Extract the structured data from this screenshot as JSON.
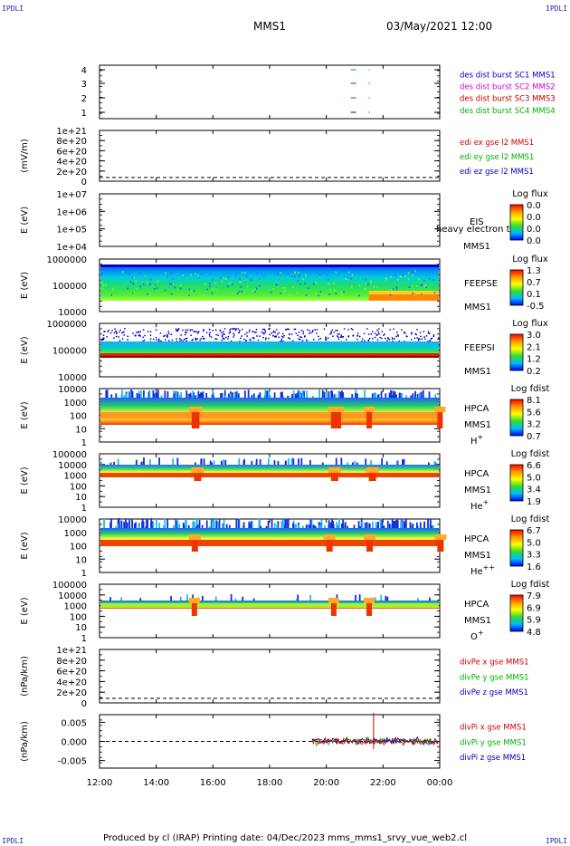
{
  "corners": {
    "tl": "IPDLI",
    "tr": "IPDLI",
    "bl": "IPDLI",
    "br": "IPDLI"
  },
  "header": {
    "spacecraft": "MMS1",
    "datetime": "03/May/2021 12:00"
  },
  "footer": {
    "text": "Produced by cl (IRAP)    Printing date: 04/Dec/2023    mms_mms1_srvy_vue_web2.cl"
  },
  "colors": {
    "frame": "#000000",
    "dash": "#000000",
    "cb_top": "#ff0000",
    "cb_bottom": "#0000ff"
  },
  "chart_data": [
    {
      "type": "scatter",
      "name": "burst",
      "y_ticks": [
        "4",
        "3",
        "2",
        "1"
      ],
      "legend": [
        {
          "text": "des dist burst SC1 MMS1",
          "color": "#0000c0"
        },
        {
          "text": "des dist burst SC2 MMS2",
          "color": "#d000d0"
        },
        {
          "text": "des dist burst SC3 MMS3",
          "color": "#c00000"
        },
        {
          "text": "des dist burst SC4 MMS4",
          "color": "#00b000"
        }
      ],
      "points": [
        {
          "x": "21:30",
          "y": 4,
          "color": "#00b000"
        },
        {
          "x": "21:30",
          "y": 3,
          "color": "#c00000"
        },
        {
          "x": "21:30",
          "y": 2,
          "color": "#d000d0"
        },
        {
          "x": "21:30",
          "y": 1,
          "color": "#0000c0"
        }
      ]
    },
    {
      "type": "line",
      "name": "edi",
      "ylabel": "(mV/m)",
      "y_ticks": [
        "1e+21",
        "8e+20",
        "6e+20",
        "4e+20",
        "2e+20",
        "0"
      ],
      "legend": [
        {
          "text": "edi ex gse l2 MMS1",
          "color": "#d00000"
        },
        {
          "text": "edi ey gse l2 MMS1",
          "color": "#00b000"
        },
        {
          "text": "edi ez gse l2 MMS1",
          "color": "#0000c0"
        }
      ]
    },
    {
      "type": "heatmap",
      "name": "EIS",
      "ylabel": "E (eV)",
      "y_ticks": [
        "1e+07",
        "1e+06",
        "1e+05",
        "1e+04"
      ],
      "labels": [
        "EIS",
        "MMS1"
      ],
      "overlay": "heavy electron to",
      "cb_title": "Log flux",
      "cb_ticks": [
        "0.0",
        "0.0",
        "0.0",
        "0.0"
      ]
    },
    {
      "type": "heatmap",
      "name": "FEEPSE",
      "ylabel": "E (eV)",
      "y_ticks": [
        "1000000",
        "100000",
        "10000"
      ],
      "labels": [
        "FEEPSE",
        "MMS1"
      ],
      "cb_title": "Log flux",
      "cb_ticks": [
        "1.3",
        "0.7",
        "0.1",
        "-0.5"
      ]
    },
    {
      "type": "heatmap",
      "name": "FEEPSI",
      "ylabel": "E (eV)",
      "y_ticks": [
        "1000000",
        "100000",
        "10000"
      ],
      "labels": [
        "FEEPSI",
        "MMS1"
      ],
      "cb_title": "Log flux",
      "cb_ticks": [
        "3.0",
        "2.1",
        "1.2",
        "0.2"
      ]
    },
    {
      "type": "heatmap",
      "name": "HPCA H+",
      "ylabel": "E (eV)",
      "y_ticks": [
        "10000",
        "1000",
        "100",
        "10",
        "1"
      ],
      "labels": [
        "HPCA",
        "MMS1",
        "H+"
      ],
      "cb_title": "Log fdist",
      "cb_ticks": [
        "8.1",
        "5.6",
        "3.2",
        "0.7"
      ]
    },
    {
      "type": "heatmap",
      "name": "HPCA He+",
      "ylabel": "E (eV)",
      "y_ticks": [
        "100000",
        "10000",
        "1000",
        "100",
        "10",
        "1"
      ],
      "labels": [
        "HPCA",
        "MMS1",
        "He+"
      ],
      "cb_title": "Log fdist",
      "cb_ticks": [
        "6.6",
        "5.0",
        "3.4",
        "1.9"
      ]
    },
    {
      "type": "heatmap",
      "name": "HPCA He++",
      "ylabel": "E (eV)",
      "y_ticks": [
        "10000",
        "1000",
        "100",
        "10",
        "1"
      ],
      "labels": [
        "HPCA",
        "MMS1",
        "He++"
      ],
      "cb_title": "Log fdist",
      "cb_ticks": [
        "6.7",
        "5.0",
        "3.3",
        "1.6"
      ]
    },
    {
      "type": "heatmap",
      "name": "HPCA O+",
      "ylabel": "E (eV)",
      "y_ticks": [
        "100000",
        "10000",
        "1000",
        "100",
        "10",
        "1"
      ],
      "labels": [
        "HPCA",
        "MMS1",
        "O+"
      ],
      "cb_title": "Log fdist",
      "cb_ticks": [
        "7.9",
        "6.9",
        "5.9",
        "4.8"
      ]
    },
    {
      "type": "line",
      "name": "divPe",
      "ylabel": "(nPa/km)",
      "y_ticks": [
        "1e+21",
        "8e+20",
        "6e+20",
        "4e+20",
        "2e+20",
        "0"
      ],
      "legend": [
        {
          "text": "divPe x gse MMS1",
          "color": "#d00000"
        },
        {
          "text": "divPe y gse MMS1",
          "color": "#00b000"
        },
        {
          "text": "divPe z gse MMS1",
          "color": "#0000c0"
        }
      ]
    },
    {
      "type": "line",
      "name": "divPi",
      "ylabel": "(nPa/km)",
      "y_ticks": [
        "0.005",
        "0.000",
        "-0.005"
      ],
      "ylim": [
        -0.007,
        0.007
      ],
      "legend": [
        {
          "text": "divPi x gse MMS1",
          "color": "#d00000"
        },
        {
          "text": "divPi y gse MMS1",
          "color": "#00b000"
        },
        {
          "text": "divPi z gse MMS1",
          "color": "#0000c0"
        }
      ],
      "data_start": "19:30",
      "data_end": "00:00",
      "spike": {
        "x": "21:40",
        "ymax": 0.0075,
        "ymin": -0.002
      }
    }
  ],
  "x_axis": {
    "ticks": [
      "12:00",
      "14:00",
      "16:00",
      "18:00",
      "20:00",
      "22:00",
      "00:00"
    ]
  }
}
